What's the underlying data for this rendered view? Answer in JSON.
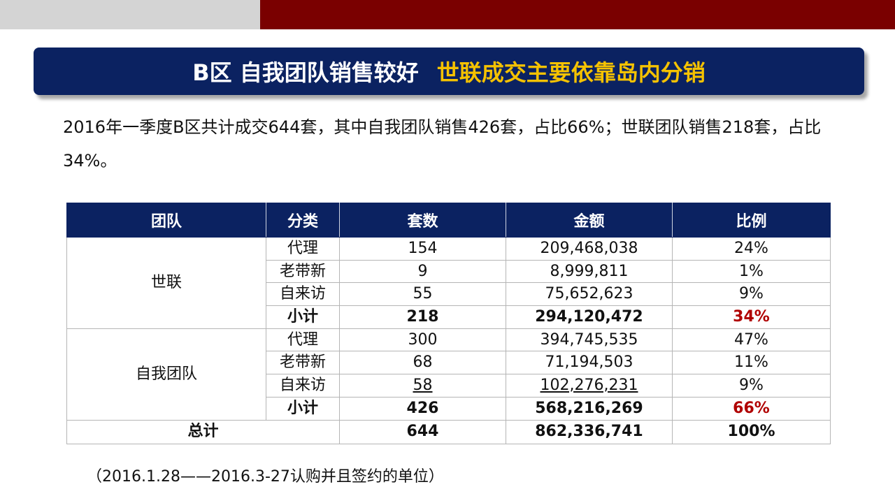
{
  "title": {
    "part1": "B区  自我团队销售较好",
    "part2": "世联成交主要依靠岛内分销"
  },
  "summary": "2016年一季度B区共计成交644套，其中自我团队销售426套，占比66%；世联团队销售218套，占比34%。",
  "table": {
    "headers": [
      "团队",
      "分类",
      "套数",
      "金额",
      "比例"
    ],
    "group1": {
      "team": "世联",
      "rows": [
        {
          "cat": "代理",
          "count": "154",
          "amount": "209,468,038",
          "ratio": "24%"
        },
        {
          "cat": "老带新",
          "count": "9",
          "amount": "8,999,811",
          "ratio": "1%"
        },
        {
          "cat": "自来访",
          "count": "55",
          "amount": "75,652,623",
          "ratio": "9%"
        }
      ],
      "subtotal": {
        "cat": "小计",
        "count": "218",
        "amount": "294,120,472",
        "ratio": "34%"
      }
    },
    "group2": {
      "team": "自我团队",
      "rows": [
        {
          "cat": "代理",
          "count": "300",
          "amount": "394,745,535",
          "ratio": "47%"
        },
        {
          "cat": "老带新",
          "count": "68",
          "amount": "71,194,503",
          "ratio": "11%"
        },
        {
          "cat": "自来访",
          "count": "58",
          "amount": "102,276,231",
          "ratio": "9%"
        }
      ],
      "subtotal": {
        "cat": "小计",
        "count": "426",
        "amount": "568,216,269",
        "ratio": "66%"
      }
    },
    "total": {
      "label": "总计",
      "count": "644",
      "amount": "862,336,741",
      "ratio": "100%"
    }
  },
  "footnote": "（2016.1.28——2016.3-27认购并且签约的单位）",
  "colors": {
    "navy": "#0b2261",
    "gold": "#f5c200",
    "top_red": "#7a0000",
    "highlight_red": "#b00000"
  }
}
